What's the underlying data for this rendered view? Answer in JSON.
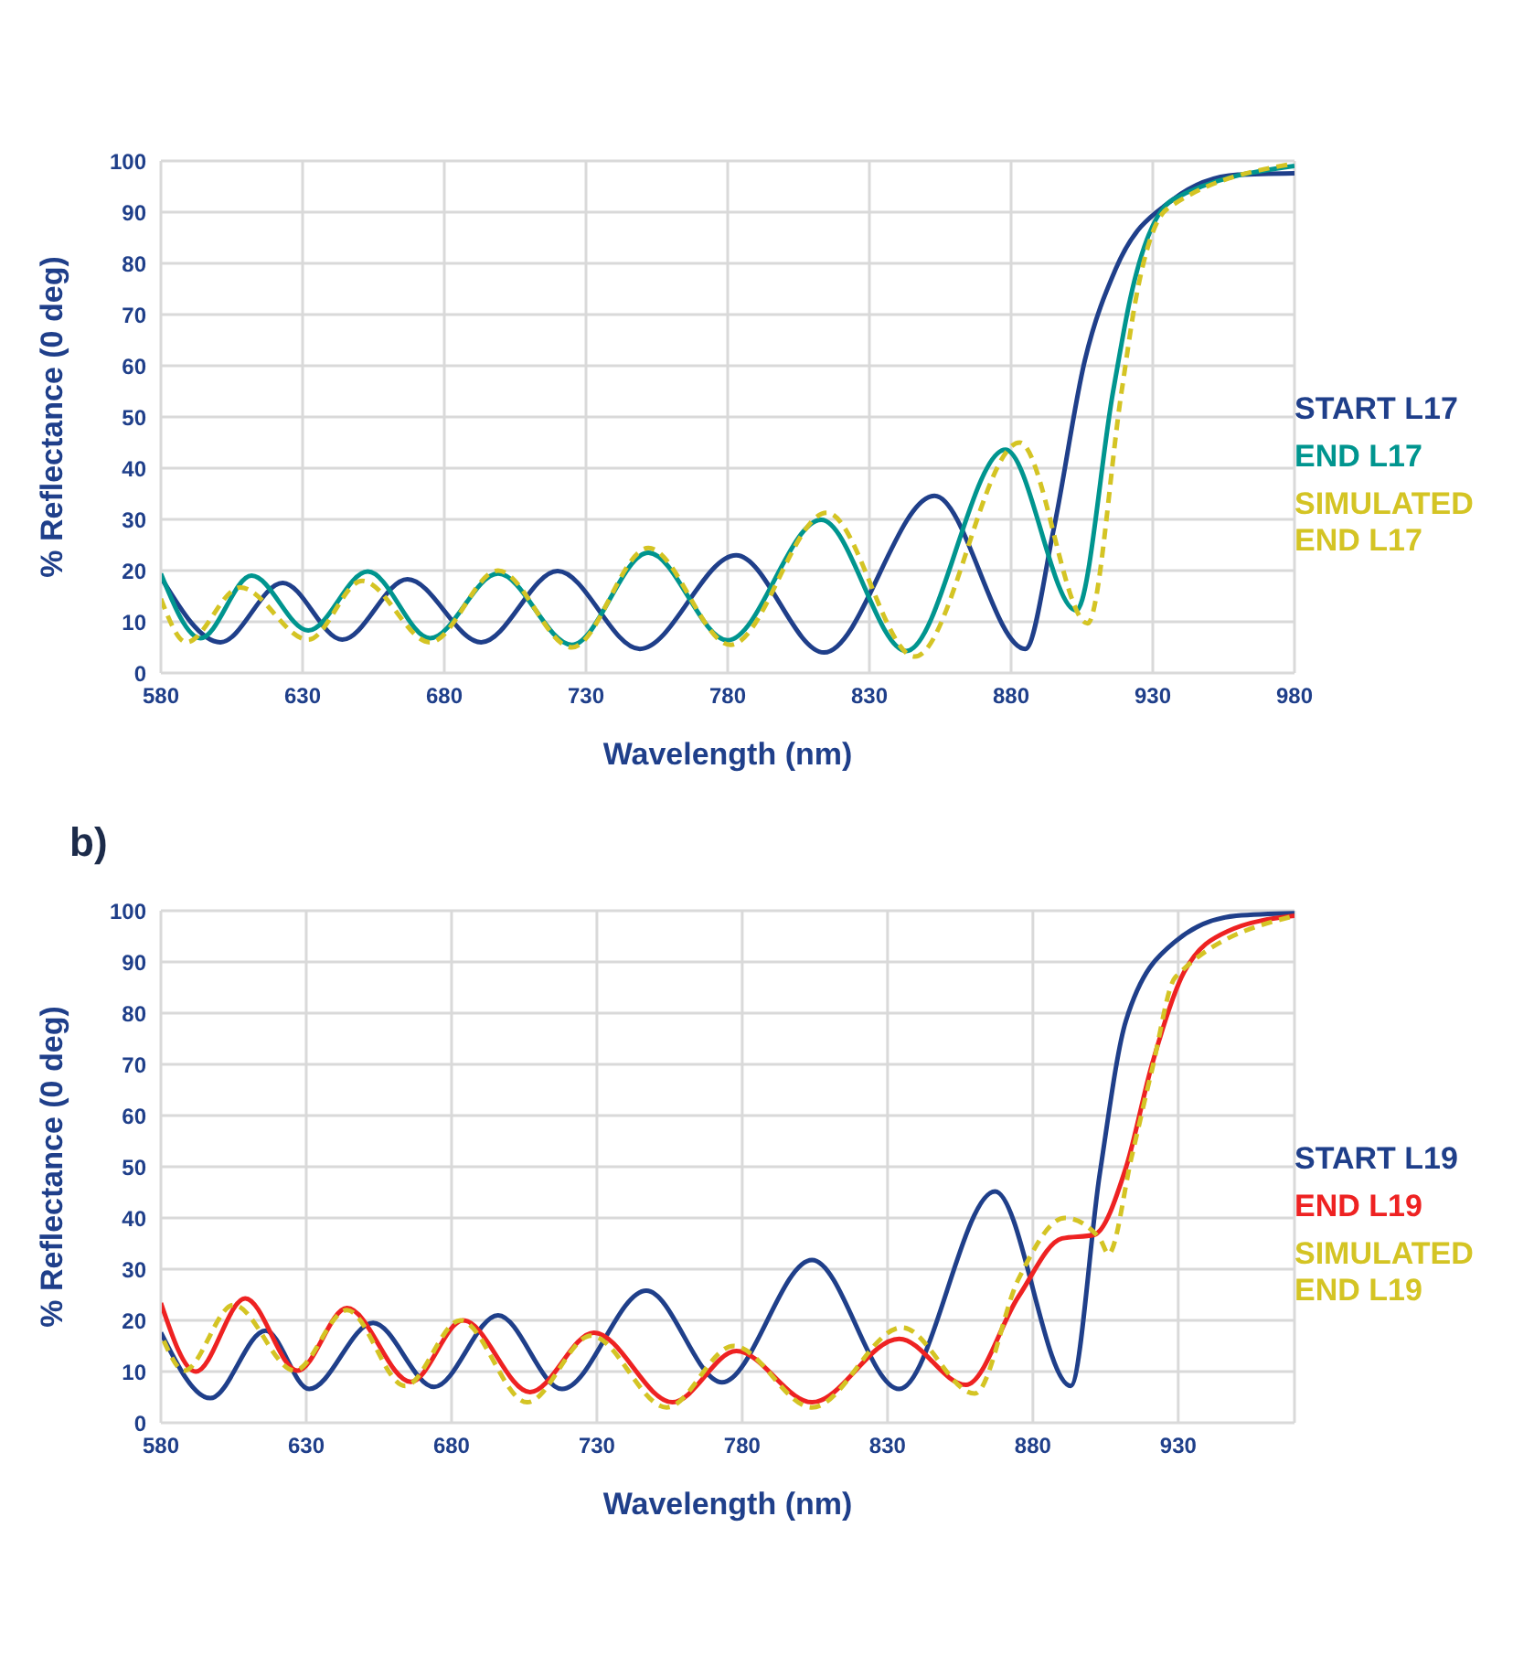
{
  "chart_data": [
    {
      "type": "line",
      "xlabel": "Wavelength (nm)",
      "ylabel": "% Reflectance (0 deg)",
      "xlim": [
        580,
        980
      ],
      "xticks": [
        580,
        630,
        680,
        730,
        780,
        830,
        880,
        930,
        980
      ],
      "ylim": [
        0,
        100
      ],
      "yticks": [
        0,
        10,
        20,
        30,
        40,
        50,
        60,
        70,
        80,
        90,
        100
      ],
      "grid": true,
      "legend": "right",
      "marker": "none",
      "series": [
        {
          "name": "START L17",
          "color": "#1f3f8a",
          "line_style": "solid",
          "x": [
            580,
            601,
            623,
            644,
            667,
            693,
            720,
            749,
            783,
            814,
            853,
            885,
            895,
            906,
            917,
            937,
            960,
            980
          ],
          "values": [
            18.7,
            6,
            17.6,
            6.5,
            18.3,
            6,
            19.9,
            4.7,
            23,
            4,
            34.6,
            4.7,
            28,
            61,
            79,
            92.4,
            97.3,
            97.6
          ]
        },
        {
          "name": "END L17",
          "color": "#00958f",
          "line_style": "solid",
          "x": [
            580,
            594,
            612,
            632,
            653,
            675,
            699,
            725,
            752,
            780,
            813,
            843,
            878,
            903,
            916,
            922,
            937,
            980
          ],
          "values": [
            19.4,
            6.8,
            19,
            8.3,
            19.8,
            6.8,
            19.4,
            5.5,
            23.5,
            6.4,
            29.9,
            4.3,
            43.6,
            12.2,
            55,
            73,
            92.4,
            99
          ]
        },
        {
          "name": "SIMULATED END L17",
          "color": "#d4c424",
          "line_style": "dashed",
          "x": [
            580,
            589,
            608,
            632,
            651,
            675,
            699,
            725,
            752,
            781,
            815,
            846,
            883,
            907,
            919,
            924,
            935,
            980
          ],
          "values": [
            14.5,
            6,
            16.7,
            6.5,
            18,
            6,
            20,
            5,
            24.4,
            5.5,
            31.3,
            3.2,
            45,
            9.7,
            55,
            73,
            90.6,
            99.5
          ]
        }
      ]
    },
    {
      "type": "line",
      "title": "b)",
      "xlabel": "Wavelength (nm)",
      "ylabel": "% Reflectance (0 deg)",
      "xlim": [
        580,
        970
      ],
      "xticks": [
        580,
        630,
        680,
        730,
        780,
        830,
        880,
        930
      ],
      "ylim": [
        0,
        100
      ],
      "yticks": [
        0,
        10,
        20,
        30,
        40,
        50,
        60,
        70,
        80,
        90,
        100
      ],
      "grid": true,
      "legend": "right",
      "marker": "none",
      "series": [
        {
          "name": "START L19",
          "color": "#1f3f8a",
          "line_style": "solid",
          "x": [
            580,
            597,
            616,
            631,
            653,
            674,
            696,
            718,
            747,
            773,
            804,
            834,
            867,
            893,
            903,
            912,
            929,
            950,
            970
          ],
          "values": [
            17.6,
            4.8,
            18,
            6.6,
            19.5,
            7,
            21,
            6.6,
            25.8,
            7.9,
            31.8,
            6.6,
            45.2,
            7.2,
            48.6,
            78.5,
            94,
            99,
            99.5
          ]
        },
        {
          "name": "END L19",
          "color": "#ee2222",
          "line_style": "solid",
          "x": [
            580,
            592,
            609,
            627,
            644,
            666,
            684,
            707,
            729,
            756,
            778,
            804,
            834,
            857,
            875,
            890,
            901,
            912,
            921,
            932,
            947,
            970
          ],
          "values": [
            23.4,
            10,
            24.3,
            10.2,
            22.4,
            8,
            20,
            6,
            17.6,
            4,
            14,
            4,
            16.4,
            7.4,
            24.6,
            36,
            36.7,
            49.8,
            70,
            88,
            96,
            99
          ]
        },
        {
          "name": "SIMULATED END L19",
          "color": "#d4c424",
          "line_style": "dashed",
          "x": [
            581,
            588,
            605,
            626,
            644,
            664,
            683,
            706,
            728,
            754,
            777,
            804,
            835,
            860,
            875,
            891,
            903,
            906,
            914,
            921,
            929,
            970
          ],
          "values": [
            16,
            10.2,
            23,
            10.2,
            22,
            7.2,
            20,
            4,
            17,
            3,
            15,
            3,
            18.6,
            5.7,
            28,
            40,
            36,
            33,
            52,
            69,
            87,
            99
          ]
        }
      ]
    }
  ]
}
